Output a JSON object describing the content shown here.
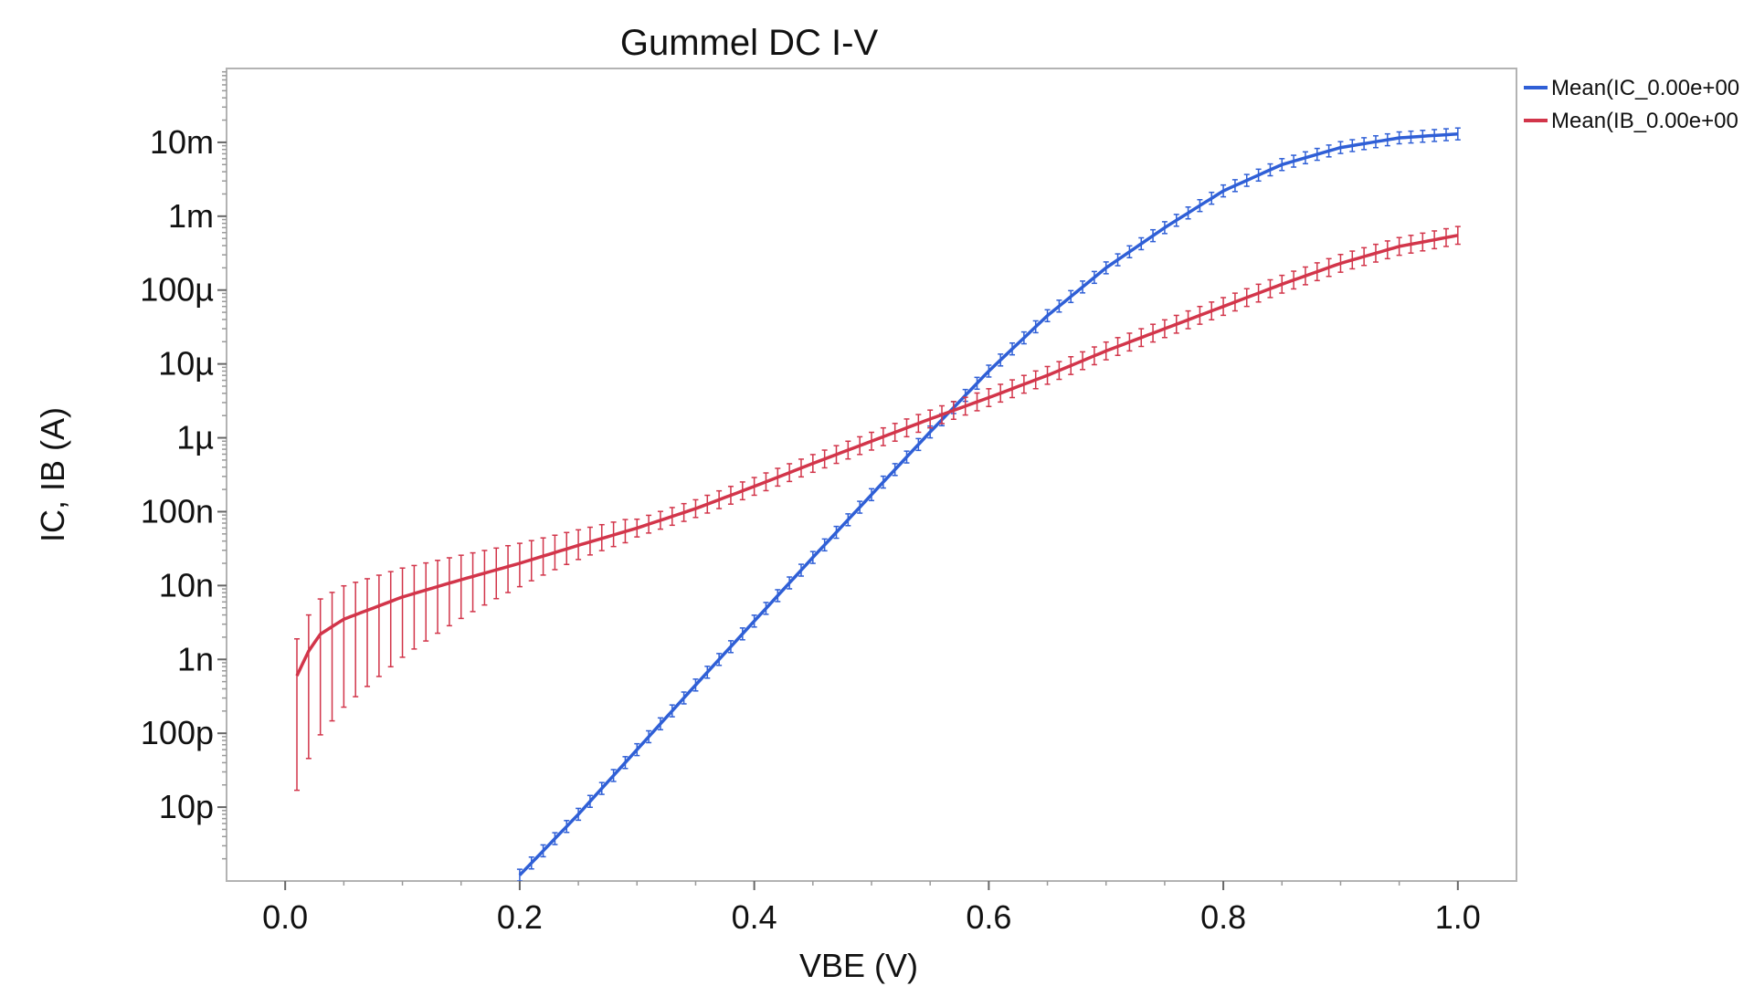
{
  "chart_data": {
    "type": "line",
    "title": "Gummel DC I-V",
    "xlabel": "VBE (V)",
    "ylabel": "IC, IB (A)",
    "y_scale": "log",
    "xlim": [
      -0.05,
      1.05
    ],
    "ylim": [
      1e-12,
      0.1
    ],
    "grid": false,
    "legend_position": "top-right, outside plot",
    "x_ticks": [
      {
        "value": 0.0,
        "label": "0.0"
      },
      {
        "value": 0.2,
        "label": "0.2"
      },
      {
        "value": 0.4,
        "label": "0.4"
      },
      {
        "value": 0.6,
        "label": "0.6"
      },
      {
        "value": 0.8,
        "label": "0.8"
      },
      {
        "value": 1.0,
        "label": "1.0"
      }
    ],
    "y_ticks": [
      {
        "value": 1e-11,
        "label": "10p"
      },
      {
        "value": 1e-10,
        "label": "100p"
      },
      {
        "value": 1e-09,
        "label": "1n"
      },
      {
        "value": 1e-08,
        "label": "10n"
      },
      {
        "value": 1e-07,
        "label": "100n"
      },
      {
        "value": 1e-06,
        "label": "1µ"
      },
      {
        "value": 1e-05,
        "label": "10µ"
      },
      {
        "value": 0.0001,
        "label": "100µ"
      },
      {
        "value": 0.001,
        "label": "1m"
      },
      {
        "value": 0.01,
        "label": "10m"
      }
    ],
    "series": [
      {
        "name": "Mean(IC_0.00e+00",
        "color": "#2f5fd6",
        "error_bars": true,
        "x": [
          0.2,
          0.25,
          0.3,
          0.35,
          0.4,
          0.45,
          0.5,
          0.55,
          0.6,
          0.65,
          0.7,
          0.75,
          0.8,
          0.85,
          0.9,
          0.95,
          1.0
        ],
        "y": [
          1.2e-12,
          8e-12,
          6e-11,
          4.5e-10,
          3.3e-09,
          2.4e-08,
          1.7e-07,
          1.2e-06,
          8e-06,
          4.5e-05,
          0.0002,
          0.0007,
          0.0022,
          0.005,
          0.0085,
          0.0115,
          0.013
        ]
      },
      {
        "name": "Mean(IB_0.00e+00",
        "color": "#d2354a",
        "error_bars": true,
        "x": [
          0.01,
          0.02,
          0.03,
          0.05,
          0.1,
          0.15,
          0.2,
          0.25,
          0.3,
          0.35,
          0.4,
          0.45,
          0.5,
          0.55,
          0.6,
          0.65,
          0.7,
          0.75,
          0.8,
          0.85,
          0.9,
          0.95,
          1.0
        ],
        "y": [
          6e-10,
          1.3e-09,
          2.2e-09,
          3.5e-09,
          7e-09,
          1.2e-08,
          2e-08,
          3.5e-08,
          6e-08,
          1.1e-07,
          2.2e-07,
          4.5e-07,
          9e-07,
          1.8e-06,
          3.5e-06,
          7e-06,
          1.5e-05,
          3e-05,
          6e-05,
          0.00012,
          0.00023,
          0.00039,
          0.00055
        ]
      }
    ]
  }
}
